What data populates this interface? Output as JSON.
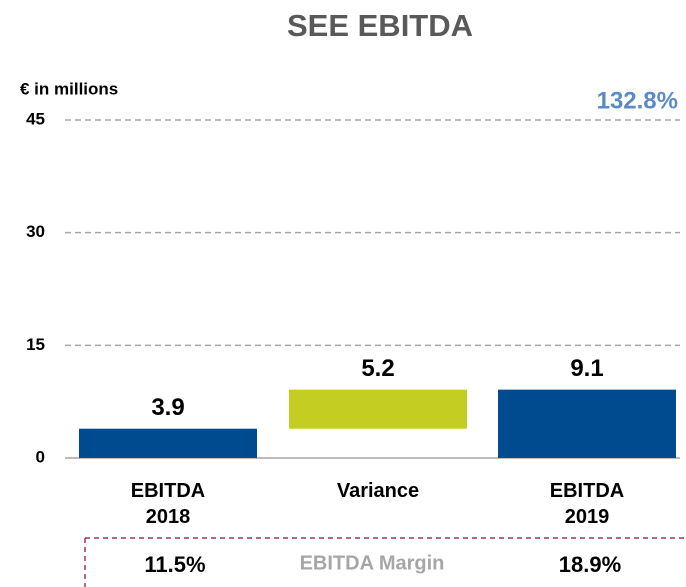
{
  "chart_data": {
    "type": "waterfall",
    "title": "SEE EBITDA",
    "y_label": "€ in millions",
    "annotation": "132.8%",
    "categories": [
      "EBITDA 2018",
      "Variance",
      "EBITDA 2019"
    ],
    "values": [
      3.9,
      5.2,
      9.1
    ],
    "measures": [
      "absolute",
      "relative",
      "total"
    ],
    "colors": [
      "#004a8f",
      "#c3cd22",
      "#004a8f"
    ],
    "ylim": [
      0,
      45
    ],
    "yticks": [
      0,
      15,
      30,
      45
    ],
    "grid": true,
    "margin_title": "EBITDA Margin",
    "margin_values": [
      "11.5%",
      "18.9%"
    ]
  }
}
